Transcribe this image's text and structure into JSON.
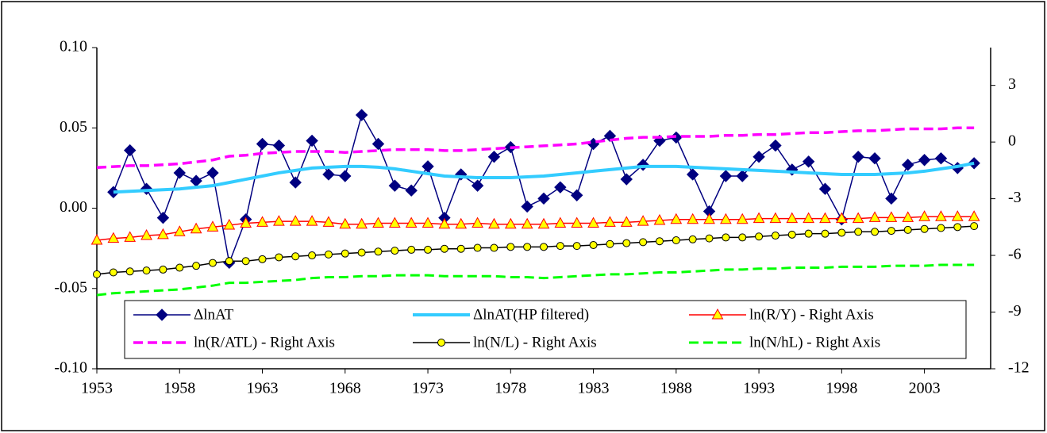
{
  "chart_data": {
    "type": "line",
    "x": [
      1953,
      1954,
      1955,
      1956,
      1957,
      1958,
      1959,
      1960,
      1961,
      1962,
      1963,
      1964,
      1965,
      1966,
      1967,
      1968,
      1969,
      1970,
      1971,
      1972,
      1973,
      1974,
      1975,
      1976,
      1977,
      1978,
      1979,
      1980,
      1981,
      1982,
      1983,
      1984,
      1985,
      1986,
      1987,
      1988,
      1989,
      1990,
      1991,
      1992,
      1993,
      1994,
      1995,
      1996,
      1997,
      1998,
      1999,
      2000,
      2001,
      2002,
      2003,
      2004,
      2005,
      2006
    ],
    "xlim": [
      1953,
      2007
    ],
    "xticks": [
      1953,
      1958,
      1963,
      1968,
      1973,
      1978,
      1983,
      1988,
      1993,
      1998,
      2003
    ],
    "ylim": [
      -0.1,
      0.1
    ],
    "yticks": [
      {
        "value": -0.1,
        "label": "-0.10"
      },
      {
        "value": -0.05,
        "label": "-0.05"
      },
      {
        "value": 0,
        "label": "0.00"
      },
      {
        "value": 0.05,
        "label": "0.05"
      },
      {
        "value": 0.1,
        "label": "0.10"
      }
    ],
    "y2lim": [
      -12,
      5
    ],
    "y2ticks": [
      -12,
      -9,
      -6,
      -3,
      0,
      3
    ],
    "grid": false,
    "legend": "bottom",
    "series": [
      {
        "name": "ΔlnAT",
        "color": "#000080",
        "marker": "diamond",
        "marker_fill": "#000080",
        "dash": false,
        "width": 1.5,
        "values": [
          null,
          0.01,
          0.036,
          0.012,
          -0.006,
          0.022,
          0.017,
          0.022,
          -0.034,
          -0.007,
          0.04,
          0.039,
          0.016,
          0.042,
          0.021,
          0.02,
          0.058,
          0.04,
          0.014,
          0.011,
          0.026,
          -0.006,
          0.021,
          0.014,
          0.032,
          0.038,
          0.001,
          0.006,
          0.013,
          0.008,
          0.04,
          0.045,
          0.018,
          0.027,
          0.042,
          0.044,
          0.021,
          -0.002,
          0.02,
          0.02,
          0.032,
          0.039,
          0.024,
          0.029,
          0.012,
          -0.007,
          0.032,
          0.031,
          0.006,
          0.027,
          0.03,
          0.031,
          0.025,
          0.028
        ]
      },
      {
        "name": "ΔlnAT(HP filtered)",
        "color": "#33ccff",
        "marker": "none",
        "dash": false,
        "width": 4,
        "values": [
          null,
          0.01,
          0.0105,
          0.011,
          0.0115,
          0.012,
          0.013,
          0.014,
          0.016,
          0.018,
          0.02,
          0.022,
          0.0235,
          0.025,
          0.0255,
          0.026,
          0.026,
          0.0255,
          0.0245,
          0.023,
          0.0215,
          0.02,
          0.0195,
          0.019,
          0.019,
          0.019,
          0.0195,
          0.02,
          0.021,
          0.022,
          0.023,
          0.024,
          0.025,
          0.026,
          0.026,
          0.026,
          0.0255,
          0.025,
          0.0245,
          0.024,
          0.0235,
          0.023,
          0.0225,
          0.022,
          0.0215,
          0.021,
          0.021,
          0.021,
          0.0215,
          0.022,
          0.023,
          0.0245,
          0.026,
          0.028
        ]
      },
      {
        "name": "ln(R/Y) - Right Axis",
        "color": "#ff0000",
        "marker": "triangle",
        "marker_fill": "#ffff00",
        "dash": false,
        "width": 1.5,
        "axis": "y2",
        "values": [
          -5.2,
          -5.1,
          -5.05,
          -4.95,
          -4.9,
          -4.75,
          -4.6,
          -4.5,
          -4.4,
          -4.3,
          -4.25,
          -4.2,
          -4.2,
          -4.2,
          -4.25,
          -4.35,
          -4.35,
          -4.3,
          -4.3,
          -4.3,
          -4.3,
          -4.35,
          -4.35,
          -4.3,
          -4.35,
          -4.35,
          -4.35,
          -4.35,
          -4.3,
          -4.3,
          -4.3,
          -4.25,
          -4.25,
          -4.2,
          -4.15,
          -4.1,
          -4.1,
          -4.1,
          -4.1,
          -4.1,
          -4.05,
          -4.05,
          -4.05,
          -4.05,
          -4.05,
          -4.05,
          -4.05,
          -4.0,
          -4.0,
          -4.0,
          -3.95,
          -3.95,
          -3.95,
          -3.95
        ]
      },
      {
        "name": "ln(R/ATL) - Right Axis",
        "color": "#ff00ff",
        "marker": "none",
        "dash": true,
        "width": 3.5,
        "axis": "y2",
        "values": [
          -1.35,
          -1.3,
          -1.25,
          -1.25,
          -1.2,
          -1.15,
          -1.05,
          -0.95,
          -0.75,
          -0.7,
          -0.6,
          -0.55,
          -0.5,
          -0.5,
          -0.5,
          -0.55,
          -0.5,
          -0.45,
          -0.4,
          -0.4,
          -0.4,
          -0.45,
          -0.45,
          -0.4,
          -0.35,
          -0.3,
          -0.25,
          -0.2,
          -0.15,
          -0.1,
          0.0,
          0.1,
          0.2,
          0.25,
          0.25,
          0.3,
          0.3,
          0.3,
          0.35,
          0.35,
          0.4,
          0.4,
          0.45,
          0.5,
          0.5,
          0.55,
          0.6,
          0.6,
          0.65,
          0.7,
          0.7,
          0.7,
          0.75,
          0.75
        ]
      },
      {
        "name": "ln(N/L) - Right Axis",
        "color": "#000000",
        "marker": "circle",
        "marker_fill": "#ffff00",
        "dash": false,
        "width": 1.5,
        "axis": "y2",
        "values": [
          -7.0,
          -6.9,
          -6.85,
          -6.8,
          -6.75,
          -6.65,
          -6.55,
          -6.4,
          -6.3,
          -6.3,
          -6.2,
          -6.1,
          -6.05,
          -6.0,
          -5.95,
          -5.9,
          -5.85,
          -5.8,
          -5.75,
          -5.7,
          -5.7,
          -5.65,
          -5.65,
          -5.6,
          -5.6,
          -5.55,
          -5.55,
          -5.55,
          -5.5,
          -5.5,
          -5.45,
          -5.4,
          -5.35,
          -5.3,
          -5.25,
          -5.2,
          -5.15,
          -5.1,
          -5.05,
          -5.05,
          -5.0,
          -4.95,
          -4.9,
          -4.85,
          -4.85,
          -4.8,
          -4.75,
          -4.75,
          -4.7,
          -4.65,
          -4.6,
          -4.55,
          -4.5,
          -4.45
        ]
      },
      {
        "name": "ln(N/hL) - Right Axis",
        "color": "#00ff00",
        "marker": "none",
        "dash": true,
        "width": 3,
        "axis": "y2",
        "values": [
          -8.1,
          -8.0,
          -7.95,
          -7.9,
          -7.85,
          -7.8,
          -7.7,
          -7.6,
          -7.45,
          -7.45,
          -7.4,
          -7.35,
          -7.3,
          -7.2,
          -7.15,
          -7.15,
          -7.1,
          -7.1,
          -7.05,
          -7.05,
          -7.05,
          -7.1,
          -7.1,
          -7.1,
          -7.1,
          -7.15,
          -7.15,
          -7.2,
          -7.15,
          -7.1,
          -7.05,
          -7.0,
          -7.0,
          -6.95,
          -6.9,
          -6.9,
          -6.85,
          -6.8,
          -6.75,
          -6.75,
          -6.7,
          -6.7,
          -6.65,
          -6.65,
          -6.65,
          -6.6,
          -6.6,
          -6.6,
          -6.55,
          -6.55,
          -6.55,
          -6.5,
          -6.5,
          -6.5
        ]
      }
    ]
  }
}
